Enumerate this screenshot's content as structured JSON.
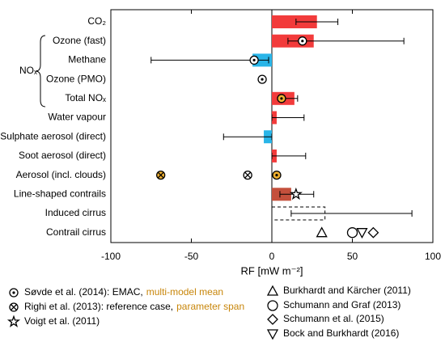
{
  "chart_data": {
    "type": "bar",
    "orientation": "horizontal",
    "x_label": "RF [mW m⁻²]",
    "group_label": "NOₓ",
    "categories": [
      "CO₂",
      "Ozone (fast)",
      "Methane",
      "Ozone (PMO)",
      "Total NOₓ",
      "Water vapour",
      "Sulphate aerosol (direct)",
      "Soot aerosol (direct)",
      "Aerosol (incl. clouds)",
      "Line-shaped contrails",
      "Induced cirrus",
      "Contrail cirrus"
    ],
    "xlim": [
      -100,
      100
    ],
    "xticks": [
      -100,
      -50,
      0,
      50,
      100
    ],
    "bars": {
      "values": [
        28,
        26,
        -12,
        null,
        14,
        3,
        -5,
        3,
        null,
        12,
        33,
        null
      ],
      "colors": [
        "#f23b3b",
        "#f23b3b",
        "#29b5e8",
        null,
        "#f23b3b",
        "#f23b3b",
        "#29b5e8",
        "#f23b3b",
        null,
        "#c4503c",
        "none",
        null
      ],
      "styles": [
        "solid",
        "solid",
        "solid",
        null,
        "solid",
        "solid",
        "solid",
        "solid",
        null,
        "solid",
        "dashed",
        null
      ],
      "err_low": [
        15,
        10,
        -75,
        null,
        5,
        0,
        -30,
        0,
        null,
        5,
        12,
        null
      ],
      "err_high": [
        41,
        82,
        -2,
        null,
        16,
        20,
        0,
        21,
        null,
        26,
        87,
        null
      ]
    },
    "series": [
      {
        "name": "Søvde et al. (2014): EMAC,",
        "marker": "circle-dot",
        "color": "#ffffff",
        "values": [
          null,
          19,
          -11,
          -6,
          null,
          null,
          null,
          null,
          null,
          null,
          null,
          null
        ]
      },
      {
        "name": "multi-model mean",
        "marker": "circle-dot",
        "color": "#f0b030",
        "text_color": "#c8860a",
        "values": [
          null,
          null,
          null,
          null,
          6,
          null,
          null,
          null,
          3,
          null,
          null,
          null
        ]
      },
      {
        "name": "Righi et al. (2013): reference case,",
        "marker": "circle-x",
        "color": "#ffffff",
        "values": [
          null,
          null,
          null,
          null,
          null,
          null,
          null,
          null,
          -15,
          null,
          null,
          null
        ]
      },
      {
        "name": "parameter span",
        "marker": "circle-x",
        "color": "#f0b030",
        "text_color": "#c8860a",
        "values": [
          null,
          null,
          null,
          null,
          null,
          null,
          null,
          null,
          -69,
          null,
          null,
          null
        ]
      },
      {
        "name": "Voigt et al. (2011)",
        "marker": "star",
        "color": "#ffffff",
        "values": [
          null,
          null,
          null,
          null,
          null,
          null,
          null,
          null,
          null,
          15,
          null,
          null
        ]
      },
      {
        "name": "Burkhardt and Kärcher (2011)",
        "marker": "triangle",
        "color": "#ffffff",
        "values": [
          null,
          null,
          null,
          null,
          null,
          null,
          null,
          null,
          null,
          null,
          null,
          31
        ]
      },
      {
        "name": "Schumann and Graf (2013)",
        "marker": "circle",
        "color": "#ffffff",
        "values": [
          null,
          null,
          null,
          null,
          null,
          null,
          null,
          null,
          null,
          null,
          null,
          50
        ]
      },
      {
        "name": "Schumann et al. (2015)",
        "marker": "diamond",
        "color": "#ffffff",
        "values": [
          null,
          null,
          null,
          null,
          null,
          null,
          null,
          null,
          null,
          null,
          null,
          63
        ]
      },
      {
        "name": "Bock and Burkhardt (2016)",
        "marker": "triangle-down",
        "color": "#ffffff",
        "values": [
          null,
          null,
          null,
          null,
          null,
          null,
          null,
          null,
          null,
          null,
          null,
          56
        ]
      }
    ]
  }
}
